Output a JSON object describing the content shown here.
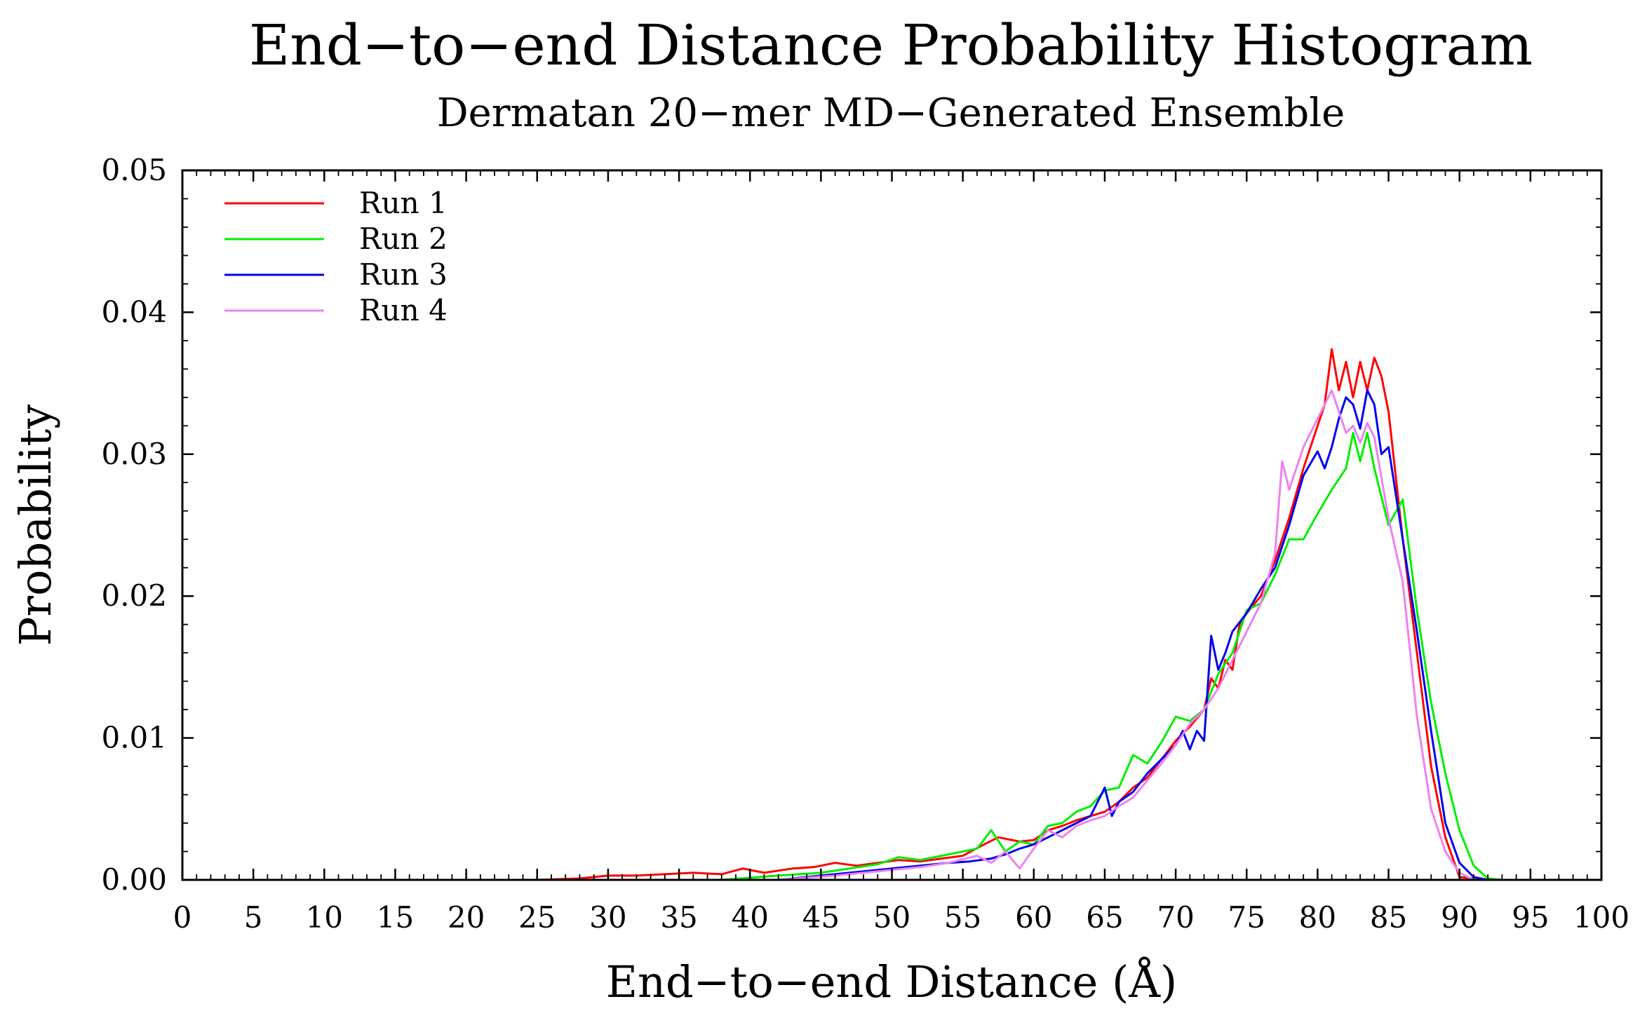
{
  "chart_data": {
    "type": "line",
    "title": "End−to−end Distance Probability Histogram",
    "subtitle": "Dermatan 20−mer MD−Generated Ensemble",
    "xlabel": "End−to−end Distance (Å)",
    "ylabel": "Probability",
    "xlim": [
      0,
      100
    ],
    "ylim": [
      0,
      0.05
    ],
    "x_ticks": [
      0,
      5,
      10,
      15,
      20,
      25,
      30,
      35,
      40,
      45,
      50,
      55,
      60,
      65,
      70,
      75,
      80,
      85,
      90,
      95,
      100
    ],
    "x_tick_labels": [
      "0",
      "5",
      "10",
      "15",
      "20",
      "25",
      "30",
      "35",
      "40",
      "45",
      "50",
      "55",
      "60",
      "65",
      "70",
      "75",
      "80",
      "85",
      "90",
      "95",
      "100"
    ],
    "y_ticks": [
      0,
      0.01,
      0.02,
      0.03,
      0.04,
      0.05
    ],
    "y_tick_labels": [
      "0.00",
      "0.01",
      "0.02",
      "0.03",
      "0.04",
      "0.05"
    ],
    "grid": false,
    "legend_position": "top-left",
    "series": [
      {
        "name": "Run 1",
        "color": "#ff0000",
        "x": [
          18,
          25,
          28,
          30,
          32,
          34,
          36,
          38,
          39.5,
          41,
          43,
          44.5,
          46,
          47.5,
          49,
          50.5,
          52,
          53.5,
          55,
          56.5,
          57.5,
          59,
          60,
          61,
          62,
          63,
          64,
          65,
          66,
          67,
          68,
          69,
          70,
          71,
          72,
          72.5,
          73,
          73.5,
          74,
          74.5,
          75,
          76,
          77,
          78,
          79,
          80,
          80.5,
          81,
          81.5,
          82,
          82.5,
          83,
          83.5,
          84,
          84.5,
          85,
          86,
          87,
          88,
          89,
          90,
          91
        ],
        "y": [
          0,
          0,
          0.0001,
          0.0003,
          0.0003,
          0.0004,
          0.0005,
          0.0004,
          0.0008,
          0.0005,
          0.0008,
          0.0009,
          0.0012,
          0.001,
          0.0012,
          0.0014,
          0.0013,
          0.0015,
          0.0017,
          0.0025,
          0.003,
          0.0027,
          0.0028,
          0.0035,
          0.0038,
          0.0042,
          0.0045,
          0.0048,
          0.0055,
          0.0065,
          0.0072,
          0.0085,
          0.0098,
          0.0108,
          0.012,
          0.0142,
          0.0135,
          0.0155,
          0.0148,
          0.018,
          0.0188,
          0.02,
          0.0225,
          0.0255,
          0.029,
          0.032,
          0.0335,
          0.0374,
          0.0345,
          0.0365,
          0.034,
          0.0365,
          0.0345,
          0.0368,
          0.0355,
          0.033,
          0.024,
          0.016,
          0.008,
          0.003,
          0.0002,
          0.0001
        ]
      },
      {
        "name": "Run 2",
        "color": "#00ee00",
        "x": [
          38,
          42,
          45,
          47,
          49,
          50.5,
          52,
          54,
          56,
          57,
          58,
          59,
          60,
          61,
          62,
          63,
          64,
          65,
          66,
          67,
          68,
          69,
          70,
          71,
          72,
          73,
          74,
          75,
          76,
          77,
          78,
          79,
          80,
          81,
          82,
          82.5,
          83,
          83.5,
          84,
          85,
          86,
          87,
          88,
          89,
          90,
          91,
          92,
          93
        ],
        "y": [
          0,
          0.0003,
          0.0005,
          0.0008,
          0.0011,
          0.0016,
          0.0014,
          0.0018,
          0.0022,
          0.0035,
          0.002,
          0.0027,
          0.0025,
          0.0038,
          0.004,
          0.0048,
          0.0052,
          0.0063,
          0.0065,
          0.0088,
          0.0082,
          0.0097,
          0.0115,
          0.0112,
          0.012,
          0.0145,
          0.016,
          0.019,
          0.0195,
          0.0215,
          0.024,
          0.024,
          0.0258,
          0.0275,
          0.029,
          0.0315,
          0.0295,
          0.0315,
          0.029,
          0.025,
          0.0268,
          0.019,
          0.0125,
          0.0075,
          0.0035,
          0.001,
          0.0001,
          0
        ]
      },
      {
        "name": "Run 3",
        "color": "#0000ee",
        "x": [
          42,
          45,
          48,
          50,
          52,
          54,
          55.5,
          57,
          58,
          59,
          60,
          61,
          62,
          63,
          64,
          65,
          65.5,
          66,
          67,
          68,
          69,
          70,
          70.5,
          71,
          71.5,
          72,
          72.5,
          73,
          73.5,
          74,
          75,
          76,
          77,
          78,
          79,
          80,
          80.5,
          81,
          81.5,
          82,
          82.5,
          83,
          83.5,
          84,
          84.5,
          85,
          86,
          87,
          88,
          89,
          90,
          91,
          92
        ],
        "y": [
          0,
          0.0003,
          0.0006,
          0.0008,
          0.001,
          0.0012,
          0.0013,
          0.0015,
          0.0018,
          0.0022,
          0.0025,
          0.003,
          0.0035,
          0.004,
          0.0045,
          0.0065,
          0.0045,
          0.0055,
          0.0062,
          0.0075,
          0.0085,
          0.0095,
          0.0105,
          0.0092,
          0.0105,
          0.0098,
          0.0172,
          0.0148,
          0.016,
          0.0175,
          0.0188,
          0.0205,
          0.022,
          0.025,
          0.0285,
          0.0302,
          0.029,
          0.0305,
          0.0325,
          0.034,
          0.0335,
          0.0318,
          0.0345,
          0.0335,
          0.03,
          0.0305,
          0.024,
          0.0175,
          0.0105,
          0.004,
          0.0012,
          0.0002,
          0
        ]
      },
      {
        "name": "Run 4",
        "color": "#ee82ee",
        "x": [
          42,
          46,
          50,
          52,
          54,
          56,
          57,
          58,
          59,
          60,
          61,
          62,
          63,
          64,
          65,
          66,
          67,
          68,
          69,
          70,
          71,
          72,
          73,
          74,
          75,
          76,
          77,
          77.5,
          78,
          79,
          79.5,
          80,
          80.5,
          81,
          81.5,
          82,
          82.5,
          83,
          83.5,
          84,
          85,
          86,
          87,
          88,
          89,
          90,
          91
        ],
        "y": [
          0,
          0.0003,
          0.0007,
          0.0009,
          0.0012,
          0.0017,
          0.0012,
          0.002,
          0.0008,
          0.0022,
          0.0035,
          0.003,
          0.0038,
          0.0042,
          0.0045,
          0.0052,
          0.0058,
          0.007,
          0.0082,
          0.0095,
          0.011,
          0.012,
          0.0135,
          0.0155,
          0.0175,
          0.0195,
          0.023,
          0.0295,
          0.0275,
          0.0305,
          0.0315,
          0.0325,
          0.0335,
          0.0345,
          0.033,
          0.0315,
          0.032,
          0.0308,
          0.0322,
          0.0312,
          0.0255,
          0.021,
          0.0115,
          0.005,
          0.002,
          0.0005,
          0
        ]
      }
    ]
  }
}
